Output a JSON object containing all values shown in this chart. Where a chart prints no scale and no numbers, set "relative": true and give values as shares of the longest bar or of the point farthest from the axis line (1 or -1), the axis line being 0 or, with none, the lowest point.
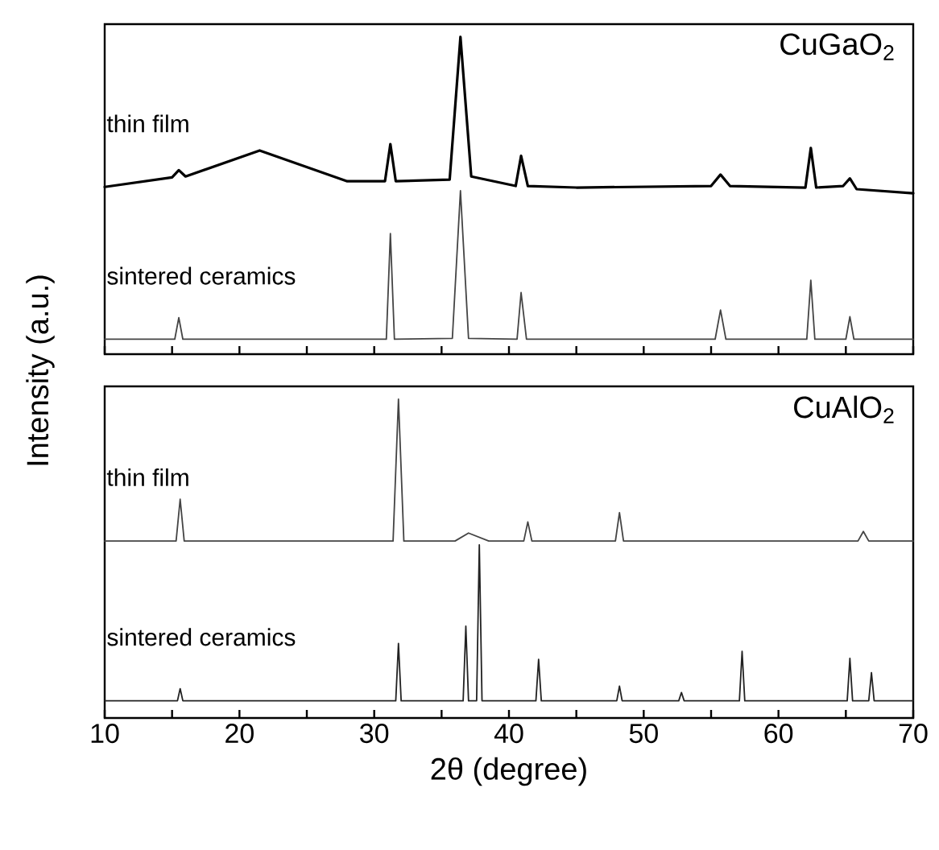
{
  "chart_data": [
    {
      "type": "line",
      "relative": true,
      "title": "CuGaO$_{2}$",
      "ylabel": "Intensity (a.u.)",
      "xlim": [
        10,
        70
      ],
      "xticks": [
        10,
        {
          "value": 15,
          "label": null
        },
        20,
        {
          "value": 25,
          "label": null
        },
        30,
        {
          "value": 35,
          "label": null
        },
        40,
        {
          "value": 45,
          "label": null
        },
        50,
        {
          "value": 55,
          "label": null
        },
        60,
        {
          "value": 65,
          "label": null
        },
        70
      ],
      "tick_labels": false,
      "series": [
        {
          "name": "thin film",
          "color": "#000000",
          "x": [
            10,
            15,
            15.5,
            16,
            21.5,
            28,
            30.8,
            31.2,
            31.6,
            35.6,
            36.4,
            37.2,
            40.5,
            40.9,
            41.4,
            45,
            55,
            55.7,
            56.4,
            62,
            62.4,
            62.8,
            64.8,
            65.3,
            65.8,
            70
          ],
          "values": [
            0.527,
            0.557,
            0.58,
            0.56,
            0.642,
            0.545,
            0.545,
            0.662,
            0.545,
            0.55,
            1.0,
            0.56,
            0.53,
            0.625,
            0.53,
            0.525,
            0.53,
            0.566,
            0.53,
            0.525,
            0.65,
            0.525,
            0.53,
            0.554,
            0.52,
            0.507
          ]
        },
        {
          "name": "sintered ceramics",
          "color": "#444444",
          "x": [
            10,
            15.2,
            15.5,
            15.8,
            30.9,
            31.2,
            31.5,
            35.8,
            36.4,
            37.0,
            40.6,
            40.9,
            41.3,
            55.3,
            55.7,
            56.1,
            62.1,
            62.4,
            62.7,
            65.0,
            65.3,
            65.6,
            70
          ],
          "values": [
            0.047,
            0.047,
            0.115,
            0.047,
            0.047,
            0.38,
            0.047,
            0.05,
            0.515,
            0.05,
            0.047,
            0.194,
            0.047,
            0.047,
            0.139,
            0.047,
            0.047,
            0.233,
            0.047,
            0.047,
            0.118,
            0.047,
            0.047
          ]
        }
      ]
    },
    {
      "type": "line",
      "relative": true,
      "title": "CuAlO$_{2}$",
      "xlabel": "2θ (degree)",
      "xlim": [
        10,
        70
      ],
      "xticks": [
        10,
        {
          "value": 15,
          "label": null
        },
        20,
        {
          "value": 25,
          "label": null
        },
        30,
        {
          "value": 35,
          "label": null
        },
        40,
        {
          "value": 45,
          "label": null
        },
        50,
        {
          "value": 55,
          "label": null
        },
        60,
        {
          "value": 65,
          "label": null
        },
        70
      ],
      "tick_labels": "x",
      "series": [
        {
          "name": "thin film",
          "color": "#444444",
          "x": [
            10,
            15.3,
            15.6,
            15.9,
            31.4,
            31.8,
            32.2,
            36,
            37,
            38.5,
            41.1,
            41.4,
            41.7,
            47.9,
            48.2,
            48.5,
            65.9,
            66.3,
            66.7,
            70
          ],
          "values": [
            0.555,
            0.555,
            0.686,
            0.555,
            0.555,
            1.0,
            0.555,
            0.555,
            0.58,
            0.555,
            0.555,
            0.615,
            0.555,
            0.555,
            0.644,
            0.555,
            0.555,
            0.585,
            0.555,
            0.555
          ]
        },
        {
          "name": "sintered ceramics",
          "color": "#222222",
          "x": [
            10,
            15.4,
            15.6,
            15.8,
            31.6,
            31.8,
            32.0,
            36.6,
            36.8,
            37.0,
            37.6,
            37.8,
            38.0,
            42.0,
            42.2,
            42.4,
            48.0,
            48.2,
            48.4,
            52.6,
            52.8,
            53.0,
            57.1,
            57.3,
            57.5,
            65.1,
            65.3,
            65.5,
            66.7,
            66.9,
            67.1,
            70
          ],
          "values": [
            0.054,
            0.054,
            0.092,
            0.054,
            0.054,
            0.234,
            0.054,
            0.054,
            0.288,
            0.054,
            0.054,
            0.543,
            0.054,
            0.054,
            0.184,
            0.054,
            0.054,
            0.1,
            0.054,
            0.054,
            0.08,
            0.054,
            0.054,
            0.209,
            0.054,
            0.054,
            0.187,
            0.054,
            0.054,
            0.142,
            0.054,
            0.054
          ]
        }
      ]
    }
  ]
}
